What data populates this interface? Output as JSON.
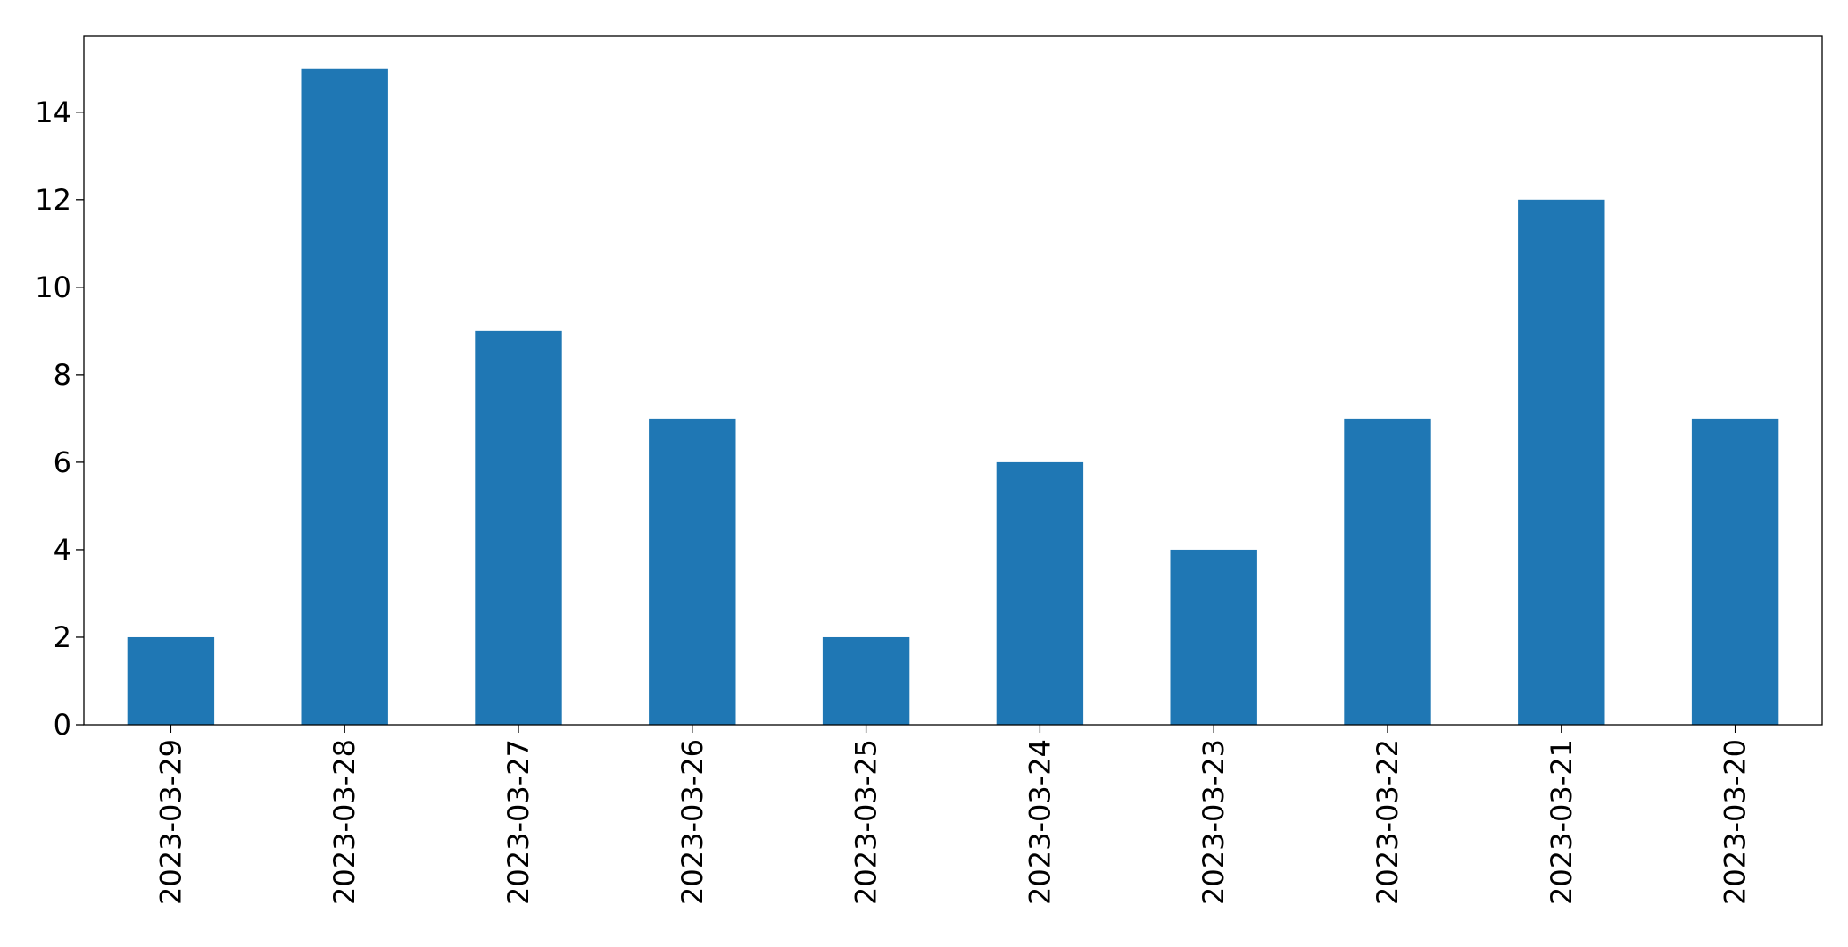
{
  "chart_data": {
    "type": "bar",
    "categories": [
      "2023-03-29",
      "2023-03-28",
      "2023-03-27",
      "2023-03-26",
      "2023-03-25",
      "2023-03-24",
      "2023-03-23",
      "2023-03-22",
      "2023-03-21",
      "2023-03-20"
    ],
    "values": [
      2,
      15,
      9,
      7,
      2,
      6,
      4,
      7,
      12,
      7
    ],
    "color": "#1f77b4",
    "ylim": [
      0,
      15.75
    ],
    "yticks": [
      0,
      2,
      4,
      6,
      8,
      10,
      12,
      14
    ],
    "grid": false
  }
}
